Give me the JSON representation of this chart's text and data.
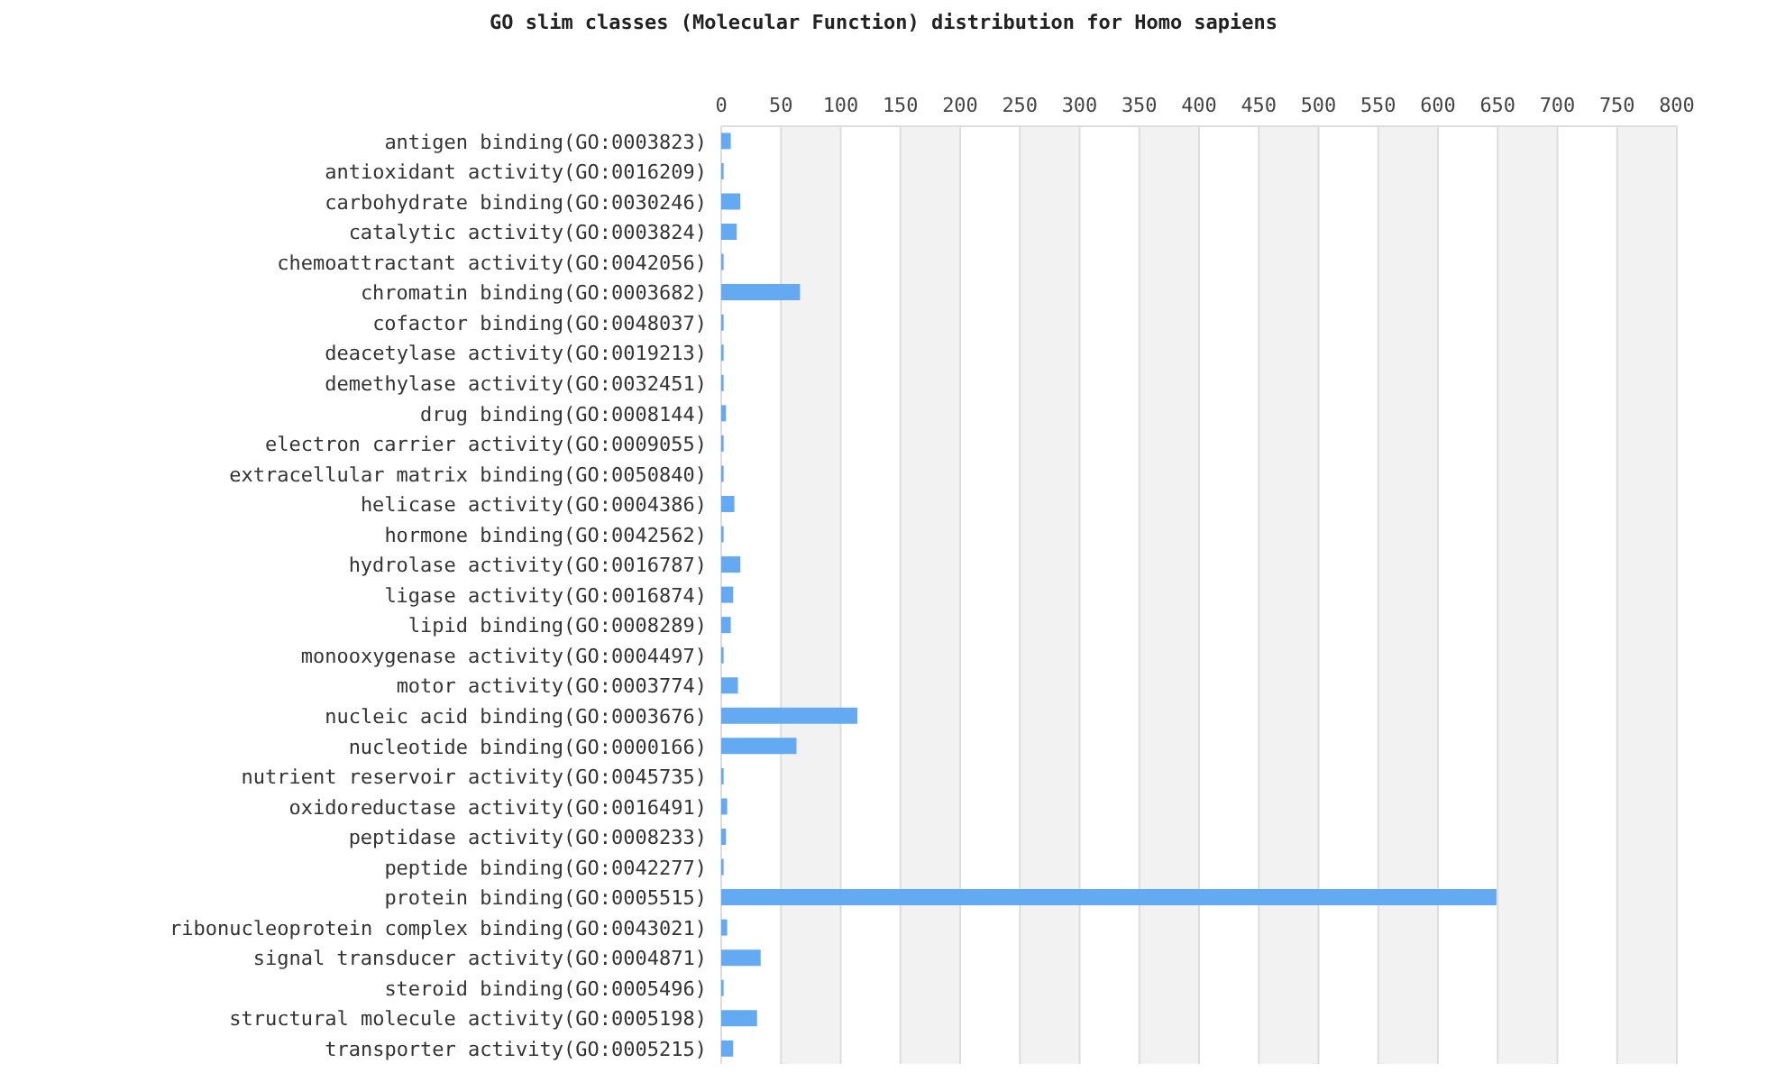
{
  "chart_data": {
    "type": "bar",
    "orientation": "horizontal",
    "title": "GO slim classes (Molecular Function) distribution for Homo sapiens",
    "categories": [
      "antigen binding(GO:0003823)",
      "antioxidant activity(GO:0016209)",
      "carbohydrate binding(GO:0030246)",
      "catalytic activity(GO:0003824)",
      "chemoattractant activity(GO:0042056)",
      "chromatin binding(GO:0003682)",
      "cofactor binding(GO:0048037)",
      "deacetylase activity(GO:0019213)",
      "demethylase activity(GO:0032451)",
      "drug binding(GO:0008144)",
      "electron carrier activity(GO:0009055)",
      "extracellular matrix binding(GO:0050840)",
      "helicase activity(GO:0004386)",
      "hormone binding(GO:0042562)",
      "hydrolase activity(GO:0016787)",
      "ligase activity(GO:0016874)",
      "lipid binding(GO:0008289)",
      "monooxygenase activity(GO:0004497)",
      "motor activity(GO:0003774)",
      "nucleic acid binding(GO:0003676)",
      "nucleotide binding(GO:0000166)",
      "nutrient reservoir activity(GO:0045735)",
      "oxidoreductase activity(GO:0016491)",
      "peptidase activity(GO:0008233)",
      "peptide binding(GO:0042277)",
      "protein binding(GO:0005515)",
      "ribonucleoprotein complex binding(GO:0043021)",
      "signal transducer activity(GO:0004871)",
      "steroid binding(GO:0005496)",
      "structural molecule activity(GO:0005198)",
      "transporter activity(GO:0005215)"
    ],
    "values": [
      8,
      2,
      16,
      13,
      2,
      66,
      2,
      2,
      2,
      4,
      2,
      2,
      11,
      2,
      16,
      10,
      8,
      2,
      14,
      114,
      63,
      2,
      5,
      4,
      2,
      649,
      5,
      33,
      2,
      30,
      10
    ],
    "color": "#63aaf2",
    "xlim": [
      0,
      800
    ],
    "xticks": [
      0,
      50,
      100,
      150,
      200,
      250,
      300,
      350,
      400,
      450,
      500,
      550,
      600,
      650,
      700,
      750,
      800
    ],
    "grid": "x"
  }
}
